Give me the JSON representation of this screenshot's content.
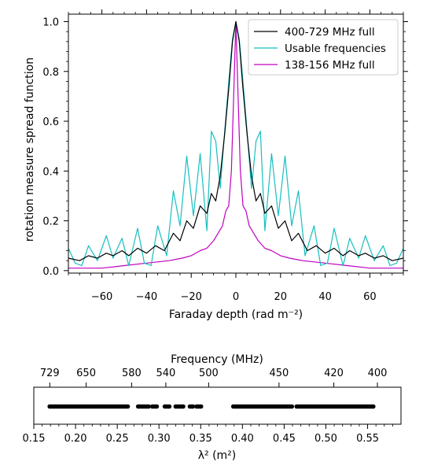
{
  "chart_data": [
    {
      "type": "line",
      "xlabel": "Faraday depth (rad m⁻²)",
      "ylabel": "rotation measure spread function",
      "xlim": [
        -75,
        75
      ],
      "ylim": [
        -0.01,
        1.03
      ],
      "xticks": [
        -60,
        -40,
        -20,
        0,
        20,
        40,
        60
      ],
      "xtick_labels": [
        "−60",
        "−40",
        "−20",
        "0",
        "20",
        "40",
        "60"
      ],
      "yticks": [
        0.0,
        0.2,
        0.4,
        0.6,
        0.8,
        1.0
      ],
      "ytick_labels": [
        "0.0",
        "0.2",
        "0.4",
        "0.6",
        "0.8",
        "1.0"
      ],
      "legend_position": "top-right",
      "grid": false,
      "series": [
        {
          "name": "400-729 MHz full",
          "color": "#000000",
          "x": [
            -75,
            -70,
            -66,
            -62,
            -58,
            -55,
            -51,
            -48,
            -44,
            -40,
            -36,
            -32,
            -28,
            -25,
            -22,
            -19,
            -16,
            -13,
            -11,
            -9,
            -7,
            -5,
            -3,
            -1.5,
            0,
            1.5,
            3,
            5,
            7,
            9,
            11,
            13,
            16,
            19,
            22,
            25,
            28,
            32,
            36,
            40,
            44,
            48,
            51,
            55,
            58,
            62,
            66,
            70,
            75
          ],
          "y": [
            0.05,
            0.04,
            0.06,
            0.05,
            0.07,
            0.06,
            0.08,
            0.06,
            0.09,
            0.07,
            0.1,
            0.08,
            0.15,
            0.12,
            0.2,
            0.17,
            0.26,
            0.23,
            0.31,
            0.28,
            0.38,
            0.55,
            0.75,
            0.92,
            1.0,
            0.92,
            0.75,
            0.55,
            0.38,
            0.28,
            0.31,
            0.23,
            0.26,
            0.17,
            0.2,
            0.12,
            0.15,
            0.08,
            0.1,
            0.07,
            0.09,
            0.06,
            0.08,
            0.06,
            0.07,
            0.05,
            0.06,
            0.04,
            0.05
          ]
        },
        {
          "name": "Usable frequencies",
          "color": "#17bfbf",
          "x": [
            -75,
            -72,
            -69,
            -66,
            -62,
            -58,
            -55,
            -51,
            -48,
            -44,
            -41,
            -38,
            -35,
            -31,
            -28,
            -25,
            -22,
            -19,
            -16,
            -13,
            -11,
            -9,
            -7,
            -5,
            -3,
            -1.5,
            0,
            1.5,
            3,
            5,
            7,
            9,
            11,
            13,
            16,
            19,
            22,
            25,
            28,
            31,
            35,
            38,
            41,
            44,
            48,
            51,
            55,
            58,
            62,
            66,
            69,
            72,
            75
          ],
          "y": [
            0.09,
            0.03,
            0.02,
            0.1,
            0.04,
            0.14,
            0.05,
            0.13,
            0.02,
            0.17,
            0.03,
            0.02,
            0.18,
            0.06,
            0.32,
            0.18,
            0.46,
            0.22,
            0.47,
            0.16,
            0.56,
            0.52,
            0.33,
            0.56,
            0.78,
            0.93,
            1.0,
            0.93,
            0.78,
            0.56,
            0.33,
            0.52,
            0.56,
            0.16,
            0.47,
            0.22,
            0.46,
            0.18,
            0.32,
            0.06,
            0.18,
            0.02,
            0.03,
            0.17,
            0.02,
            0.13,
            0.05,
            0.14,
            0.04,
            0.1,
            0.02,
            0.03,
            0.09
          ]
        },
        {
          "name": "138-156 MHz full",
          "color": "#c000c0",
          "x": [
            -75,
            -60,
            -50,
            -40,
            -30,
            -24,
            -20,
            -16,
            -13,
            -10,
            -8,
            -6,
            -4.5,
            -3.2,
            -2,
            -1,
            0,
            1,
            2,
            3.2,
            4.5,
            6,
            8,
            10,
            13,
            16,
            20,
            24,
            30,
            40,
            50,
            60,
            75
          ],
          "y": [
            0.01,
            0.01,
            0.02,
            0.03,
            0.04,
            0.05,
            0.06,
            0.08,
            0.09,
            0.12,
            0.15,
            0.18,
            0.24,
            0.26,
            0.4,
            0.7,
            1.0,
            0.7,
            0.4,
            0.26,
            0.24,
            0.18,
            0.15,
            0.12,
            0.09,
            0.08,
            0.06,
            0.05,
            0.04,
            0.03,
            0.02,
            0.01,
            0.01
          ]
        }
      ]
    },
    {
      "type": "scatter",
      "xlabel": "λ² (m²)",
      "top_xlabel": "Frequency (MHz)",
      "xlim": [
        0.15,
        0.59
      ],
      "xticks": [
        0.15,
        0.2,
        0.25,
        0.3,
        0.35,
        0.4,
        0.45,
        0.5,
        0.55
      ],
      "xtick_labels": [
        "0.15",
        "0.20",
        "0.25",
        "0.30",
        "0.35",
        "0.40",
        "0.45",
        "0.50",
        "0.55"
      ],
      "top_xticks": [
        729,
        650,
        580,
        540,
        500,
        450,
        420,
        400
      ],
      "top_xtick_labels": [
        "729",
        "650",
        "580",
        "540",
        "500",
        "450",
        "420",
        "400"
      ],
      "series": [
        {
          "name": "",
          "color": "#000000",
          "x_ranges": [
            [
              0.169,
              0.263
            ],
            [
              0.275,
              0.288
            ],
            [
              0.292,
              0.298
            ],
            [
              0.307,
              0.313
            ],
            [
              0.32,
              0.33
            ],
            [
              0.337,
              0.342
            ],
            [
              0.345,
              0.351
            ],
            [
              0.389,
              0.46
            ],
            [
              0.465,
              0.558
            ]
          ]
        }
      ]
    }
  ]
}
